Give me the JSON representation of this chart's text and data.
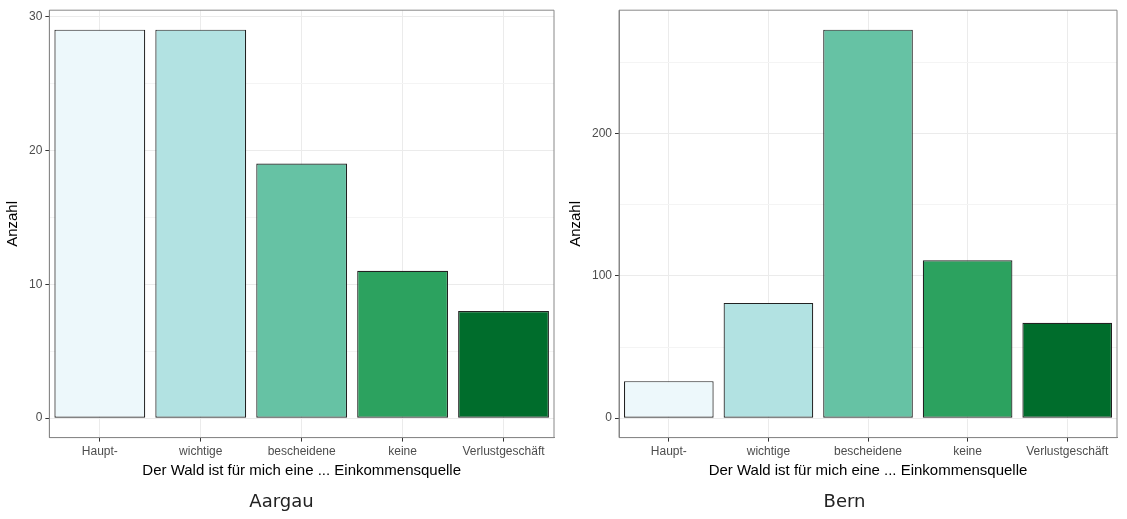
{
  "chart_data": [
    {
      "type": "bar",
      "title": "Aargau",
      "xlabel": "Der Wald ist für mich eine ... Einkommensquelle",
      "ylabel": "Anzahl",
      "categories": [
        "Haupt-",
        "wichtige",
        "bescheidene",
        "keine",
        "Verlustgeschäft"
      ],
      "values": [
        29,
        29,
        19,
        11,
        8
      ],
      "colors": [
        "#edf8fb",
        "#b2e2e2",
        "#66c2a4",
        "#2ca25f",
        "#006d2c"
      ],
      "ylim": [
        -1.45,
        30.45
      ],
      "yticks": [
        0,
        {
          "value": 5,
          "label": null
        },
        10,
        {
          "value": 15,
          "label": null
        },
        20,
        {
          "value": 25,
          "label": null
        },
        30
      ],
      "grid": true
    },
    {
      "type": "bar",
      "title": "Bern",
      "xlabel": "Der Wald ist für mich eine ... Einkommensquelle",
      "ylabel": "Anzahl",
      "categories": [
        "Haupt-",
        "wichtige",
        "bescheidene",
        "keine",
        "Verlustgeschäft"
      ],
      "values": [
        26,
        81,
        273,
        111,
        67
      ],
      "colors": [
        "#edf8fb",
        "#b2e2e2",
        "#66c2a4",
        "#2ca25f",
        "#006d2c"
      ],
      "ylim": [
        -13.65,
        286.65
      ],
      "yticks": [
        0,
        {
          "value": 50,
          "label": null
        },
        100,
        {
          "value": 150,
          "label": null
        },
        200,
        {
          "value": 250,
          "label": null
        }
      ],
      "grid": true
    }
  ]
}
